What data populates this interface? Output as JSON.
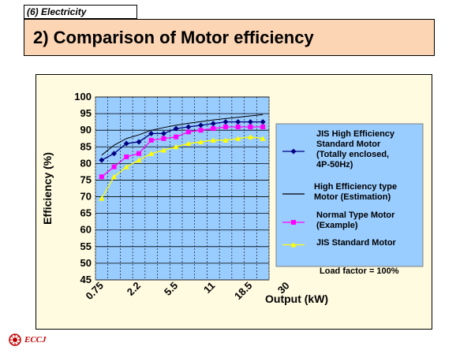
{
  "header": {
    "section_tag": "(6) Electricity",
    "title": "2) Comparison of Motor efficiency"
  },
  "logo": {
    "text": "ECCJ"
  },
  "chart_data": {
    "type": "line",
    "ylabel": "Efficiency (%)",
    "xlabel": "Output (kW)",
    "ylim": [
      45,
      100
    ],
    "yticks": [
      45,
      50,
      55,
      60,
      65,
      70,
      75,
      80,
      85,
      90,
      95,
      100
    ],
    "x_tick_labels": [
      "0.75",
      "2.2",
      "5.5",
      "11",
      "18.5",
      "30"
    ],
    "n_points": 14,
    "grid": true,
    "legend_position": "right",
    "annotation": "Load factor = 100%",
    "series": [
      {
        "name": "JIS High Efficiency Standard Motor (Totally enclosed, 4P-50Hz)",
        "legend_lines": [
          "JIS High Efficiency",
          "Standard Motor",
          "(Totally enclosed,",
          "4P-50Hz)"
        ],
        "marker": "diamond",
        "color": "#000080",
        "values": [
          81,
          83,
          86,
          86.5,
          89,
          89,
          90.5,
          91,
          91.5,
          92,
          92.5,
          92.5,
          92.5,
          92.5
        ]
      },
      {
        "name": "High Efficiency type Motor (Estimation)",
        "legend_lines": [
          "High Efficiency  type",
          "Motor (Estimation)"
        ],
        "marker": "none",
        "color": "#000000",
        "values": [
          82.5,
          85.5,
          87.5,
          88.6,
          90,
          90.8,
          91.5,
          92.1,
          92.6,
          93.1,
          93.5,
          93.9,
          94.3,
          94.7
        ]
      },
      {
        "name": "Normal Type Motor (Example)",
        "legend_lines": [
          "Normal Type Motor",
          "(Example)"
        ],
        "marker": "square",
        "color": "#ff00ff",
        "values": [
          76,
          79,
          82,
          83,
          87,
          87.5,
          88,
          89.5,
          90,
          90.5,
          91,
          91,
          91,
          91
        ]
      },
      {
        "name": "JIS Standard Motor",
        "legend_lines": [
          "JIS Standard Motor"
        ],
        "marker": "triangle",
        "color": "#ffff00",
        "values": [
          69.5,
          76,
          79,
          81,
          83,
          84,
          85,
          86,
          86.5,
          87,
          87,
          87.5,
          88,
          87.5
        ]
      }
    ]
  }
}
